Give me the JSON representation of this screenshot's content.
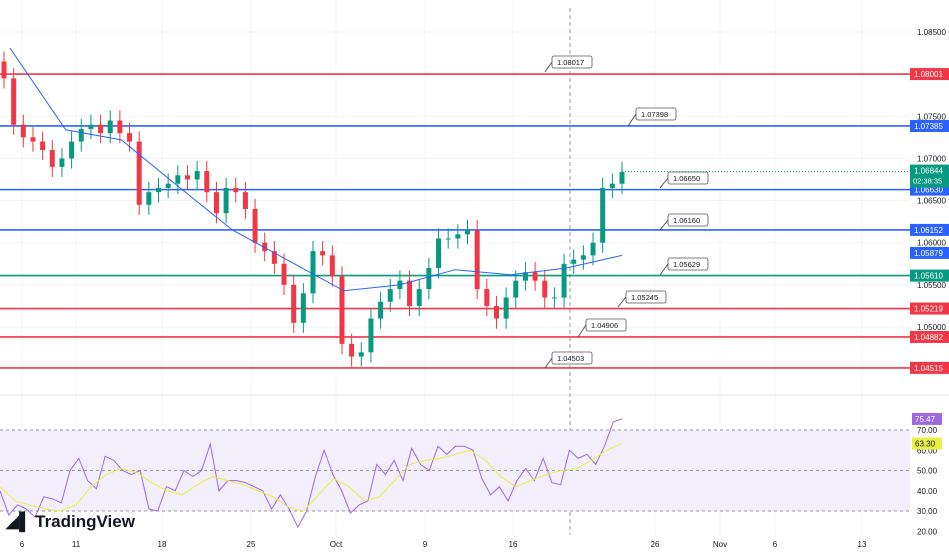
{
  "chart_data": {
    "type": "candlestick",
    "price_axis": {
      "ticks": [
        "1.08500",
        "1.07500",
        "1.07000",
        "1.06500",
        "1.06000",
        "1.05500",
        "1.05000"
      ],
      "range": [
        1.0435,
        1.0875
      ]
    },
    "last_price": {
      "value": "1.06844",
      "countdown": "02:38:35",
      "color": "#089981"
    },
    "date_ticks": [
      "6",
      "11",
      "18",
      "25",
      "Oct",
      "9",
      "16",
      "26",
      "Nov",
      "6",
      "13"
    ],
    "closes": [
      1.0795,
      1.074,
      1.0725,
      1.072,
      1.071,
      1.069,
      1.07,
      1.072,
      1.0735,
      1.074,
      1.073,
      1.0745,
      1.073,
      1.072,
      1.0645,
      1.066,
      1.0665,
      1.067,
      1.068,
      1.0675,
      1.0685,
      1.066,
      1.0635,
      1.0665,
      1.066,
      1.064,
      1.06,
      1.059,
      1.0575,
      1.055,
      1.0505,
      1.054,
      1.059,
      1.0585,
      1.056,
      1.048,
      1.0465,
      1.047,
      1.051,
      1.053,
      1.0545,
      1.0555,
      1.0525,
      1.0545,
      1.057,
      1.0605,
      1.0605,
      1.061,
      1.0615,
      1.0545,
      1.0525,
      1.051,
      1.0535,
      1.0555,
      1.0565,
      1.0555,
      1.0535,
      1.0535,
      1.0575,
      1.058,
      1.0585,
      1.06,
      1.0665,
      1.067,
      1.0684
    ],
    "moving_average": {
      "value": "1.05879",
      "color": "#2962ff",
      "points": [
        1.0831,
        1.0734,
        1.0722,
        1.0668,
        1.0615,
        1.0579,
        1.0543,
        1.055,
        1.0568,
        1.0562,
        1.057,
        1.0585
      ]
    },
    "levels": [
      {
        "value": "1.08001",
        "color": "#f23645",
        "callout": "1.08017"
      },
      {
        "value": "1.07385",
        "color": "#2962ff",
        "callout": "1.07398"
      },
      {
        "value": "1.06630",
        "color": "#2962ff",
        "callout": "1.06650"
      },
      {
        "value": "1.06152",
        "color": "#2962ff",
        "callout": "1.06160"
      },
      {
        "value": "1.05610",
        "color": "#089981",
        "callout": "1.05629"
      },
      {
        "value": "1.05219",
        "color": "#f23645",
        "callout": "1.05245"
      },
      {
        "value": "1.04882",
        "color": "#f23645",
        "callout": "1.04906"
      },
      {
        "value": "1.04515",
        "color": "#f23645",
        "callout": "1.04503"
      }
    ],
    "rsi": {
      "value": "75.47",
      "ma_value": "63.30",
      "color": "#9c6ade",
      "ma_color": "#e8f040",
      "ticks": [
        "70.00",
        "60.00",
        "50.00",
        "40.00",
        "30.00",
        "20.00"
      ],
      "bands": [
        30,
        70
      ],
      "values": [
        40,
        28,
        33,
        31,
        27,
        37,
        36,
        34,
        50,
        56,
        45,
        41,
        57,
        55,
        50,
        48,
        50,
        31,
        30,
        42,
        40,
        50,
        47,
        50,
        63,
        40,
        45,
        45,
        44,
        42,
        40,
        31,
        38,
        31,
        22,
        30,
        47,
        60,
        48,
        40,
        29,
        33,
        35,
        53,
        48,
        55,
        45,
        61,
        53,
        50,
        62,
        58,
        62,
        62,
        60,
        46,
        38,
        42,
        35,
        45,
        51,
        45,
        56,
        44,
        43,
        60,
        56,
        58,
        53,
        62,
        74,
        75.5
      ],
      "ma": [
        42,
        35,
        33,
        31,
        30,
        33,
        42,
        48,
        51,
        49,
        44,
        40,
        38,
        43,
        47,
        45,
        43,
        40,
        37,
        32,
        30,
        38,
        46,
        42,
        35,
        37,
        45,
        53,
        55,
        56,
        58,
        60,
        55,
        47,
        42,
        45,
        48,
        50,
        51,
        55,
        60,
        63.3
      ]
    }
  },
  "brand": "TradingView"
}
